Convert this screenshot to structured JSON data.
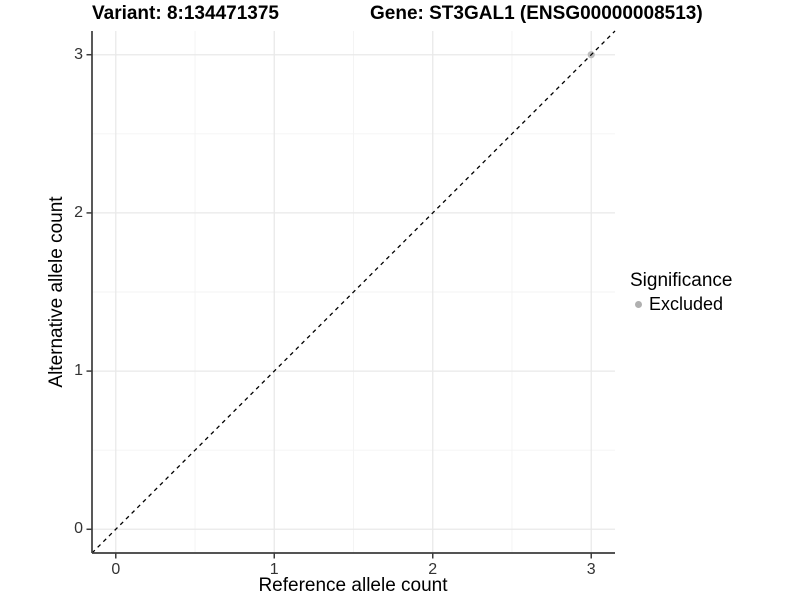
{
  "figure": {
    "background": "#ffffff"
  },
  "chart_data": {
    "type": "scatter",
    "title_left": "Variant: 8:134471375",
    "title_right": "Gene: ST3GAL1 (ENSG00000008513)",
    "xlabel": "Reference allele count",
    "ylabel": "Alternative allele count",
    "xlim": [
      -0.15,
      3.15
    ],
    "ylim": [
      -0.15,
      3.15
    ],
    "x_ticks": [
      0,
      1,
      2,
      3
    ],
    "y_ticks": [
      0,
      1,
      2,
      3
    ],
    "x_minor_ticks": [
      0.5,
      1.5,
      2.5
    ],
    "y_minor_ticks": [
      0.5,
      1.5,
      2.5
    ],
    "grid": true,
    "identity_line": {
      "slope": 1,
      "intercept": 0,
      "style": "dashed",
      "color": "#000000"
    },
    "points": [
      {
        "x": 3,
        "y": 3,
        "significance": "Excluded",
        "color": "#bdbdbd"
      }
    ],
    "legend": {
      "title": "Significance",
      "position": "right",
      "entries": [
        {
          "label": "Excluded",
          "color": "#b0b0b0",
          "marker": "circle"
        }
      ]
    },
    "colors": {
      "grid_major": "#e9e9e9",
      "grid_minor": "#f3f3f3",
      "axis_line": "#3c3c3c",
      "tick_label": "#333333"
    }
  }
}
